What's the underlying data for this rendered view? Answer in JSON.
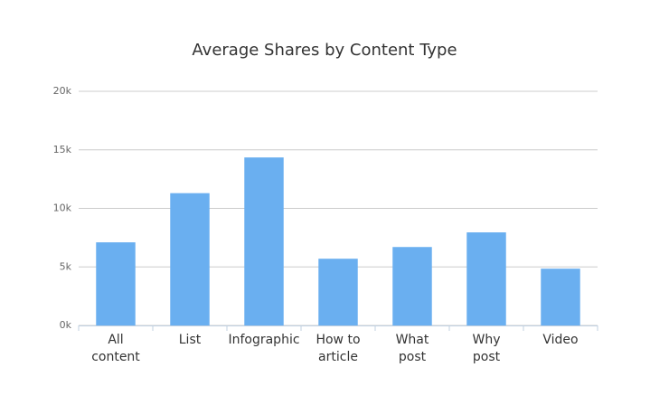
{
  "chart_data": {
    "type": "bar",
    "title": "Average Shares by Content Type",
    "categories": [
      "All content",
      "List",
      "Infographic",
      "How to article",
      "What post",
      "Why post",
      "Video"
    ],
    "values": [
      7100,
      11300,
      14350,
      5700,
      6700,
      7950,
      4850
    ],
    "color": "#6aaff0",
    "ylim": [
      0,
      20000
    ],
    "yticks": [
      {
        "value": 0,
        "label": "0k"
      },
      {
        "value": 5000,
        "label": "5k"
      },
      {
        "value": 10000,
        "label": "10k"
      },
      {
        "value": 15000,
        "label": "15k"
      },
      {
        "value": 20000,
        "label": "20k"
      }
    ],
    "grid": true
  }
}
